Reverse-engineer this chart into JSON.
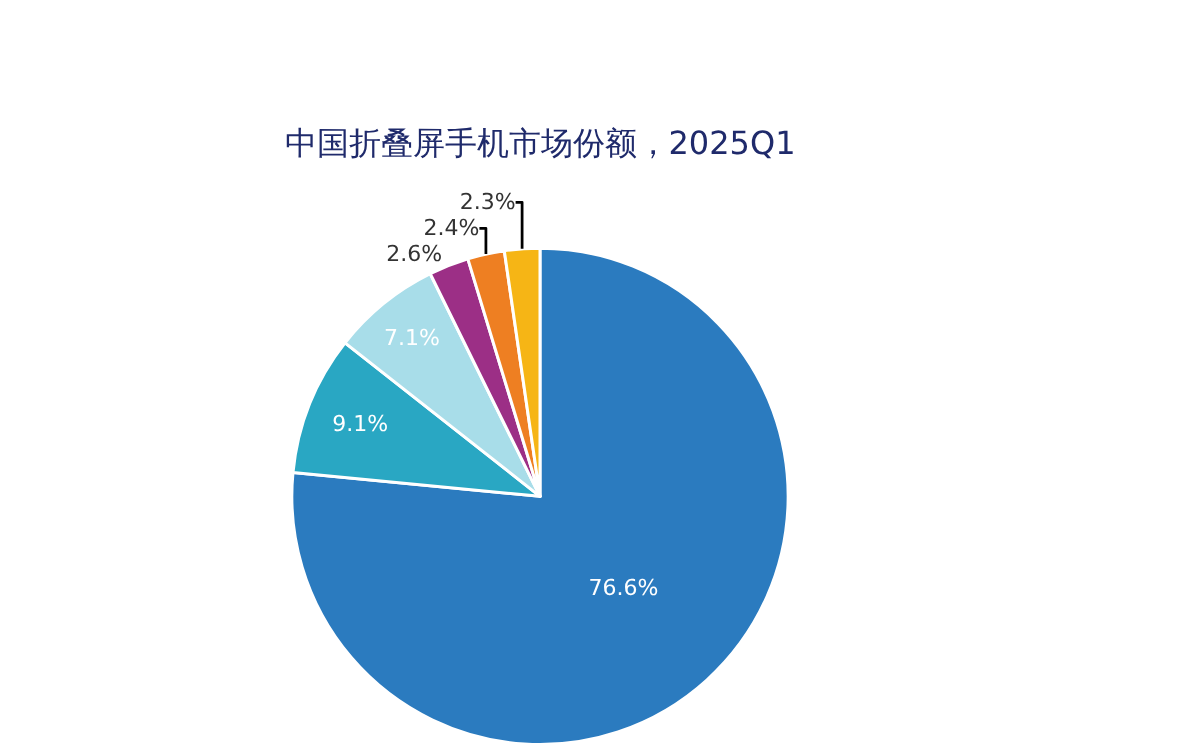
{
  "chart_data": {
    "type": "pie",
    "title": "中国折叠屏手机市场份额，2025Q1",
    "categories": [
      null,
      null,
      null,
      null,
      null,
      null
    ],
    "values": [
      76.6,
      9.1,
      7.1,
      2.6,
      2.4,
      2.3
    ],
    "colors": [
      "#2b7bbf",
      "#29a7c3",
      "#a8dde9",
      "#9c2f86",
      "#ee7f22",
      "#f6b515"
    ],
    "value_labels": [
      "76.6%",
      "9.1%",
      "7.1%",
      "2.6%",
      "2.4%",
      "2.3%"
    ],
    "legend": false
  }
}
